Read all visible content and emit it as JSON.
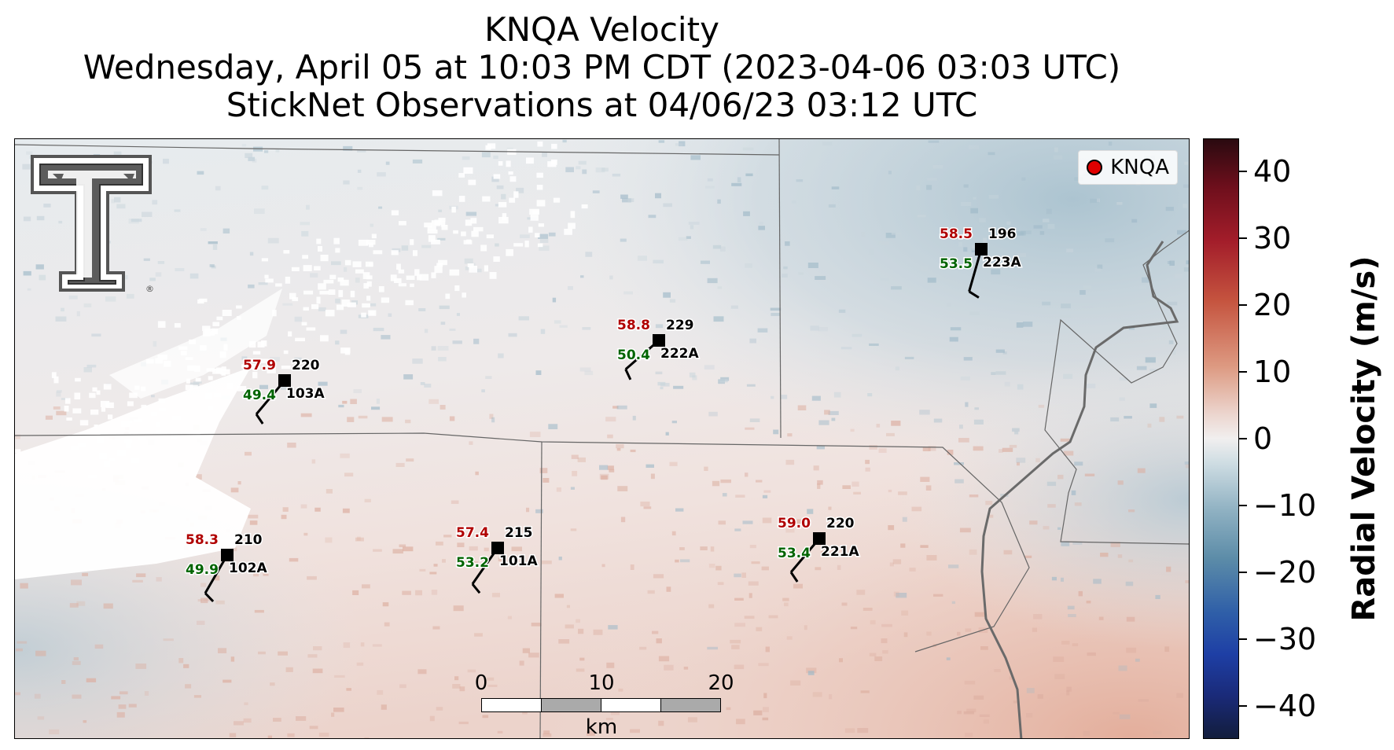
{
  "title": {
    "line1": "KNQA Velocity",
    "line2": "Wednesday, April 05 at 10:03 PM CDT (2023-04-06 03:03 UTC)",
    "line3": "StickNet Observations at 04/06/23 03:12 UTC"
  },
  "legend": {
    "label": "KNQA",
    "marker_color": "#e00000"
  },
  "logo": {
    "name": "Texas Tech Double T",
    "registered_mark": "®"
  },
  "colorbar": {
    "label": "Radial Velocity (m/s)",
    "ticks": [
      "40",
      "30",
      "20",
      "10",
      "0",
      "−10",
      "−20",
      "−30",
      "−40"
    ],
    "vmin": -45,
    "vmax": 45
  },
  "scalebar": {
    "ticks": [
      "0",
      "10",
      "20"
    ],
    "unit": "km"
  },
  "stations": [
    {
      "id": "103A",
      "temp": "57.9",
      "dew": "49.4",
      "dir": "220"
    },
    {
      "id": "222A",
      "temp": "58.8",
      "dew": "50.4",
      "dir": "229"
    },
    {
      "id": "223A",
      "temp": "58.5",
      "dew": "53.5",
      "dir": "196"
    },
    {
      "id": "102A",
      "temp": "58.3",
      "dew": "49.9",
      "dir": "210"
    },
    {
      "id": "101A",
      "temp": "57.4",
      "dew": "53.2",
      "dir": "215"
    },
    {
      "id": "221A",
      "temp": "59.0",
      "dew": "53.4",
      "dir": "220"
    }
  ],
  "colors": {
    "temp_text": "#b00000",
    "dew_text": "#006400",
    "positive_velocity": "#c5543f",
    "negative_velocity": "#5c8ca8"
  }
}
